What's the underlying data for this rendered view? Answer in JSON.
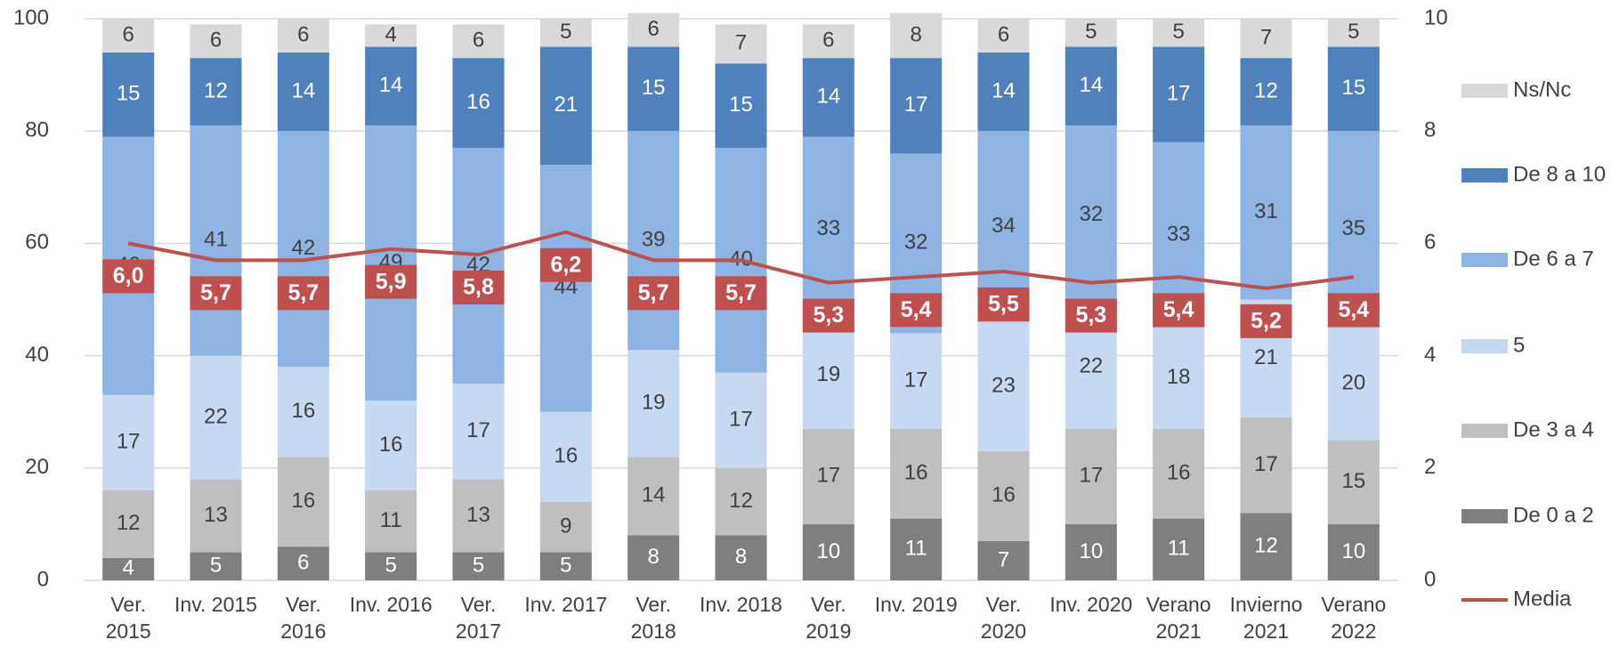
{
  "chart_data": {
    "type": "bar",
    "stacked": true,
    "categories": [
      "Ver. 2015",
      "Inv. 2015",
      "Ver. 2016",
      "Inv. 2016",
      "Ver. 2017",
      "Inv. 2017",
      "Ver. 2018",
      "Inv. 2018",
      "Ver. 2019",
      "Inv. 2019",
      "Ver. 2020",
      "Inv. 2020",
      "Verano 2021",
      "Invierno 2021",
      "Verano 2022"
    ],
    "series": [
      {
        "name": "De 0 a 2",
        "color": "#7f7f7f",
        "label_color": "#ffffff",
        "values": [
          4,
          5,
          6,
          5,
          5,
          5,
          8,
          8,
          10,
          11,
          7,
          10,
          11,
          12,
          10
        ]
      },
      {
        "name": "De 3 a 4",
        "color": "#bfbfbf",
        "label_color": "#404040",
        "values": [
          12,
          13,
          16,
          11,
          13,
          9,
          14,
          12,
          17,
          16,
          16,
          17,
          16,
          17,
          15
        ]
      },
      {
        "name": "5",
        "color": "#c6d9f1",
        "label_color": "#404040",
        "values": [
          17,
          22,
          16,
          16,
          17,
          16,
          19,
          17,
          19,
          17,
          23,
          22,
          18,
          21,
          20
        ]
      },
      {
        "name": "De 6 a 7",
        "color": "#8eb4e3",
        "label_color": "#404040",
        "values": [
          46,
          41,
          42,
          49,
          42,
          44,
          39,
          40,
          33,
          32,
          34,
          32,
          33,
          31,
          35
        ]
      },
      {
        "name": "De 8 a 10",
        "color": "#4f81bd",
        "label_color": "#ffffff",
        "values": [
          15,
          12,
          14,
          14,
          16,
          21,
          15,
          15,
          14,
          17,
          14,
          14,
          17,
          12,
          15
        ]
      },
      {
        "name": "Ns/Nc",
        "color": "#d9d9d9",
        "label_color": "#404040",
        "values": [
          6,
          6,
          6,
          4,
          6,
          5,
          6,
          7,
          6,
          8,
          6,
          5,
          5,
          7,
          5
        ]
      },
      {
        "name": "Media",
        "type": "line",
        "axis": "y2",
        "color": "#c0504d",
        "values": [
          6.0,
          5.7,
          5.7,
          5.9,
          5.8,
          6.2,
          5.7,
          5.7,
          5.3,
          5.4,
          5.5,
          5.3,
          5.4,
          5.2,
          5.4
        ],
        "value_labels": [
          "6,0",
          "5,7",
          "5,7",
          "5,9",
          "5,8",
          "6,2",
          "5,7",
          "5,7",
          "5,3",
          "5,4",
          "5,5",
          "5,3",
          "5,4",
          "5,2",
          "5,4"
        ]
      }
    ],
    "ylim": [
      0,
      100
    ],
    "yticks": [
      0,
      20,
      40,
      60,
      80,
      100
    ],
    "y2lim": [
      0,
      10
    ],
    "y2ticks": [
      0,
      2,
      4,
      6,
      8,
      10
    ],
    "grid": true,
    "legend": "right"
  }
}
